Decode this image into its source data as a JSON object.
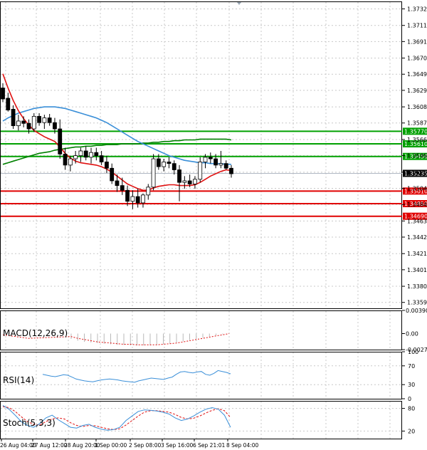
{
  "chart_data": {
    "type": "candlestick",
    "main": {
      "y_ticks": [
        "1.37325",
        "1.37115",
        "1.36910",
        "1.36700",
        "1.36495",
        "1.36290",
        "1.36080",
        "1.35875",
        "1.35665",
        "1.35460",
        "1.35250",
        "1.35045",
        "1.34840",
        "1.34630",
        "1.34425",
        "1.34215",
        "1.34010",
        "1.33800",
        "1.33595"
      ],
      "ylim": [
        1.3352,
        1.3742
      ],
      "candles": [
        [
          1.3632,
          1.3638,
          1.3614,
          1.3618
        ],
        [
          1.3619,
          1.3626,
          1.3602,
          1.3604
        ],
        [
          1.3605,
          1.361,
          1.358,
          1.3584
        ],
        [
          1.3584,
          1.3598,
          1.3578,
          1.359
        ],
        [
          1.359,
          1.3596,
          1.3582,
          1.3587
        ],
        [
          1.3587,
          1.3592,
          1.3574,
          1.358
        ],
        [
          1.358,
          1.36,
          1.3576,
          1.3596
        ],
        [
          1.3596,
          1.36,
          1.3584,
          1.3588
        ],
        [
          1.3588,
          1.3598,
          1.358,
          1.3594
        ],
        [
          1.3594,
          1.3599,
          1.3584,
          1.3588
        ],
        [
          1.3588,
          1.3594,
          1.3574,
          1.358
        ],
        [
          1.358,
          1.3592,
          1.3542,
          1.3548
        ],
        [
          1.3548,
          1.3556,
          1.3528,
          1.3534
        ],
        [
          1.3534,
          1.3546,
          1.3526,
          1.3542
        ],
        [
          1.3542,
          1.3552,
          1.3536,
          1.3546
        ],
        [
          1.3546,
          1.3556,
          1.3538,
          1.3552
        ],
        [
          1.3552,
          1.3558,
          1.354,
          1.3544
        ],
        [
          1.3544,
          1.3556,
          1.3536,
          1.355
        ],
        [
          1.355,
          1.3556,
          1.354,
          1.3546
        ],
        [
          1.3546,
          1.3552,
          1.3534,
          1.3538
        ],
        [
          1.3538,
          1.3546,
          1.3524,
          1.353
        ],
        [
          1.353,
          1.3536,
          1.351,
          1.3514
        ],
        [
          1.3514,
          1.3522,
          1.35,
          1.3508
        ],
        [
          1.3508,
          1.3518,
          1.3496,
          1.3502
        ],
        [
          1.3502,
          1.3508,
          1.3482,
          1.3488
        ],
        [
          1.3488,
          1.3502,
          1.3478,
          1.3494
        ],
        [
          1.3494,
          1.3504,
          1.348,
          1.3486
        ],
        [
          1.3486,
          1.3498,
          1.348,
          1.3496
        ],
        [
          1.3496,
          1.351,
          1.349,
          1.3506
        ],
        [
          1.3506,
          1.3548,
          1.3502,
          1.3542
        ],
        [
          1.3542,
          1.3548,
          1.3528,
          1.3532
        ],
        [
          1.3532,
          1.3542,
          1.3526,
          1.3538
        ],
        [
          1.3538,
          1.3544,
          1.353,
          1.3536
        ],
        [
          1.3536,
          1.354,
          1.3522,
          1.3528
        ],
        [
          1.3528,
          1.3534,
          1.3488,
          1.3512
        ],
        [
          1.3512,
          1.352,
          1.3504,
          1.3514
        ],
        [
          1.3514,
          1.3522,
          1.3506,
          1.351
        ],
        [
          1.351,
          1.352,
          1.3504,
          1.3516
        ],
        [
          1.3516,
          1.3544,
          1.3512,
          1.3538
        ],
        [
          1.3538,
          1.3548,
          1.353,
          1.3544
        ],
        [
          1.3544,
          1.355,
          1.3536,
          1.3542
        ],
        [
          1.3542,
          1.3548,
          1.353,
          1.3534
        ],
        [
          1.3534,
          1.3552,
          1.353,
          1.3536
        ],
        [
          1.3536,
          1.354,
          1.3528,
          1.353
        ],
        [
          1.353,
          1.3534,
          1.3518,
          1.3523
        ]
      ],
      "ma_red": [
        1.365,
        1.3632,
        1.3616,
        1.3603,
        1.3593,
        1.3585,
        1.3578,
        1.3574,
        1.357,
        1.3567,
        1.3564,
        1.3557,
        1.3549,
        1.3543,
        1.3539,
        1.3537,
        1.3536,
        1.3535,
        1.3534,
        1.3532,
        1.3529,
        1.3525,
        1.352,
        1.3515,
        1.351,
        1.3507,
        1.3504,
        1.3502,
        1.3502,
        1.3505,
        1.3507,
        1.3508,
        1.3509,
        1.3509,
        1.3508,
        1.3508,
        1.3508,
        1.3509,
        1.3512,
        1.3516,
        1.352,
        1.3523,
        1.3526,
        1.3528,
        1.3527
      ],
      "ma_blue": [
        1.359,
        1.3594,
        1.3597,
        1.36,
        1.3602,
        1.3604,
        1.3606,
        1.3607,
        1.3608,
        1.3608,
        1.3608,
        1.3607,
        1.3606,
        1.3604,
        1.3602,
        1.36,
        1.3598,
        1.3596,
        1.3594,
        1.3591,
        1.3588,
        1.3584,
        1.358,
        1.3576,
        1.3572,
        1.3568,
        1.3564,
        1.3561,
        1.3558,
        1.3555,
        1.3552,
        1.3549,
        1.3546,
        1.3544,
        1.3542,
        1.354,
        1.3539,
        1.3538,
        1.3537,
        1.3537,
        1.3536,
        1.3536,
        1.3536,
        1.3535,
        1.3535
      ],
      "ma_green": [
        1.3535,
        1.3537,
        1.3539,
        1.3541,
        1.3543,
        1.3545,
        1.3547,
        1.3549,
        1.355,
        1.3551,
        1.3553,
        1.3554,
        1.3555,
        1.3556,
        1.3557,
        1.3557,
        1.3558,
        1.3558,
        1.3559,
        1.3559,
        1.356,
        1.356,
        1.356,
        1.3561,
        1.3561,
        1.3561,
        1.3561,
        1.3562,
        1.3562,
        1.3563,
        1.3563,
        1.3564,
        1.3564,
        1.3565,
        1.3565,
        1.3566,
        1.3566,
        1.3566,
        1.3567,
        1.3567,
        1.3567,
        1.3567,
        1.3567,
        1.3567,
        1.3566
      ],
      "levels": [
        {
          "value": 1.3577,
          "label": "1.35770",
          "color": "#00a000"
        },
        {
          "value": 1.3561,
          "label": "1.35610",
          "color": "#00a000"
        },
        {
          "value": 1.3545,
          "label": "1.35450",
          "color": "#00a000"
        },
        {
          "value": 1.35235,
          "label": "1.35235",
          "color": "#000000"
        },
        {
          "value": 1.3501,
          "label": "1.35010",
          "color": "#e00000"
        },
        {
          "value": 1.3485,
          "label": "1.34850",
          "color": "#e00000"
        },
        {
          "value": 1.3469,
          "label": "1.34690",
          "color": "#e00000"
        }
      ]
    },
    "macd": {
      "title": "MACD(12,26,9)",
      "y_ticks": [
        "0.003909",
        "0.00",
        "-0.002702"
      ],
      "ylim": [
        -0.0027,
        0.0039
      ],
      "histogram": [
        -0.0009,
        -0.0012,
        -0.0014,
        -0.0015,
        -0.0016,
        -0.0017,
        -0.0018,
        -0.0019,
        -0.0019,
        -0.002,
        -0.002,
        -0.002,
        -0.002,
        -0.0019,
        -0.0018,
        -0.0017,
        -0.0015,
        -0.0013,
        -0.0011,
        -0.0009,
        -0.0007,
        -0.0005,
        -0.0003,
        -0.0001,
        0.0001
      ],
      "signal": [
        -0.0005,
        -0.0008,
        -0.001,
        -0.0012,
        -0.0014,
        -0.0015,
        -0.0016,
        -0.0017,
        -0.0018,
        -0.0018,
        -0.0019,
        -0.0019,
        -0.0019,
        -0.0019,
        -0.0018,
        -0.0017,
        -0.0016,
        -0.0014,
        -0.0012,
        -0.001,
        -0.0008,
        -0.0006,
        -0.0004,
        -0.0002,
        0.0
      ]
    },
    "rsi": {
      "title": "RSI(14)",
      "y_ticks": [
        "100",
        "70",
        "30",
        "0"
      ],
      "ylim": [
        0,
        100
      ],
      "values": [
        52,
        50,
        48,
        47,
        49,
        51,
        50,
        46,
        42,
        40,
        38,
        37,
        36,
        38,
        40,
        41,
        42,
        41,
        40,
        38,
        37,
        36,
        35,
        38,
        40,
        42,
        44,
        43,
        42,
        41,
        44,
        46,
        52,
        57,
        58,
        56,
        55,
        57,
        58,
        52,
        50,
        54,
        60,
        58,
        56,
        53
      ]
    },
    "stoch": {
      "title": "Stoch(5,3,3)",
      "y_ticks": [
        "80",
        "20"
      ],
      "ylim": [
        0,
        100
      ],
      "k": [
        88,
        78,
        62,
        45,
        35,
        30,
        40,
        55,
        62,
        50,
        40,
        30,
        28,
        35,
        38,
        30,
        25,
        22,
        24,
        30,
        48,
        60,
        72,
        76,
        75,
        73,
        70,
        65,
        55,
        48,
        52,
        60,
        70,
        78,
        82,
        78,
        62,
        30
      ],
      "d": [
        85,
        82,
        72,
        58,
        45,
        38,
        36,
        45,
        52,
        55,
        52,
        42,
        35,
        32,
        35,
        34,
        30,
        26,
        24,
        26,
        36,
        48,
        60,
        70,
        74,
        74,
        72,
        70,
        64,
        56,
        52,
        54,
        60,
        68,
        75,
        79,
        74,
        56
      ]
    },
    "x_labels": [
      "26 Aug 04:00",
      "27 Aug 12:00",
      "28 Aug 20:00",
      "1 Sep 00:00",
      "2 Sep 08:00",
      "3 Sep 16:00",
      "6 Sep 21:01",
      "8 Sep 04:00"
    ]
  }
}
